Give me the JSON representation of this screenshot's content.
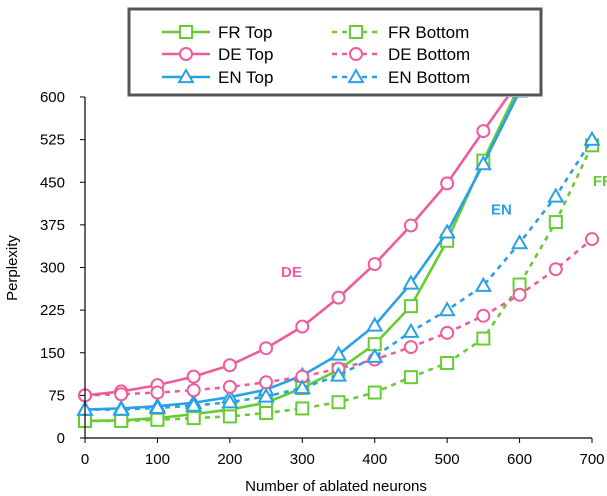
{
  "chart_data": {
    "type": "line",
    "xlabel": "Number of ablated neurons",
    "ylabel": "Perplexity",
    "xlim": [
      0,
      700
    ],
    "ylim": [
      0,
      600
    ],
    "xticks": [
      0,
      100,
      200,
      300,
      400,
      500,
      600,
      700
    ],
    "yticks": [
      0,
      75,
      150,
      225,
      300,
      375,
      450,
      525,
      600
    ],
    "grid": false,
    "legend_position": "top",
    "series": [
      {
        "name": "FR Top",
        "color": "#66cc33",
        "marker": "square",
        "dashed": false,
        "x": [
          0,
          50,
          100,
          150,
          200,
          250,
          300,
          350,
          400,
          450,
          500,
          550,
          600
        ],
        "y": [
          30,
          31,
          35,
          42,
          50,
          62,
          88,
          120,
          165,
          232,
          347,
          488,
          620
        ]
      },
      {
        "name": "DE Top",
        "color": "#ee5c9c",
        "marker": "circle",
        "dashed": false,
        "x": [
          0,
          50,
          100,
          150,
          200,
          250,
          300,
          350,
          400,
          450,
          500,
          550,
          600
        ],
        "y": [
          75,
          82,
          93,
          108,
          128,
          158,
          196,
          247,
          306,
          374,
          448,
          540,
          630
        ]
      },
      {
        "name": "EN Top",
        "color": "#2aa0e6",
        "marker": "triangle",
        "dashed": false,
        "x": [
          0,
          50,
          100,
          150,
          200,
          250,
          300,
          350,
          400,
          450,
          500,
          550,
          600
        ],
        "y": [
          50,
          52,
          56,
          62,
          72,
          85,
          110,
          147,
          198,
          272,
          362,
          482,
          610
        ]
      },
      {
        "name": "FR Bottom",
        "color": "#66cc33",
        "marker": "square",
        "dashed": true,
        "x": [
          0,
          50,
          100,
          150,
          200,
          250,
          300,
          350,
          400,
          450,
          500,
          550,
          600,
          650,
          700
        ],
        "y": [
          30,
          30,
          32,
          35,
          38,
          44,
          52,
          63,
          80,
          107,
          132,
          175,
          270,
          380,
          515
        ]
      },
      {
        "name": "DE Bottom",
        "color": "#ee5c9c",
        "marker": "circle",
        "dashed": true,
        "x": [
          0,
          50,
          100,
          150,
          200,
          250,
          300,
          350,
          400,
          450,
          500,
          550,
          600,
          650,
          700
        ],
        "y": [
          75,
          77,
          80,
          84,
          90,
          98,
          108,
          122,
          138,
          160,
          185,
          215,
          252,
          297,
          350
        ]
      },
      {
        "name": "EN Bottom",
        "color": "#2aa0e6",
        "marker": "triangle",
        "dashed": true,
        "x": [
          0,
          50,
          100,
          150,
          200,
          250,
          300,
          350,
          400,
          450,
          500,
          550,
          600,
          650,
          700
        ],
        "y": [
          50,
          50,
          53,
          57,
          63,
          73,
          88,
          110,
          143,
          187,
          225,
          268,
          343,
          425,
          525
        ]
      }
    ],
    "annotations": [
      {
        "text": "DE",
        "color": "#ee5c9c",
        "x": 285,
        "y": 283
      },
      {
        "text": "EN",
        "color": "#2aa0e6",
        "x": 575,
        "y": 393
      },
      {
        "text": "FR",
        "color": "#66cc33",
        "x": 715,
        "y": 443
      }
    ]
  }
}
